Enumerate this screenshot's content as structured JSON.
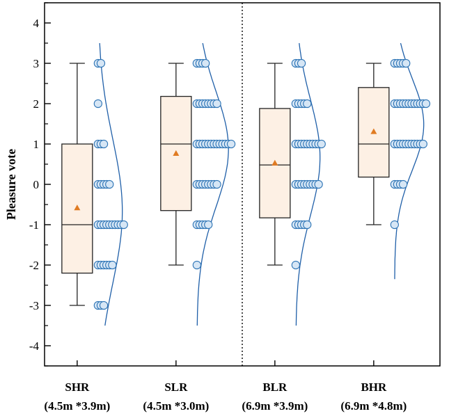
{
  "chart_data": {
    "type": "box",
    "ylabel": "Pleasure vote",
    "ylim": [
      -4.5,
      4.5
    ],
    "yticks": [
      -4,
      -3,
      -2,
      -1,
      0,
      1,
      2,
      3,
      4
    ],
    "categories": [
      {
        "name": "SHR",
        "sub": "(4.5m *3.9m)"
      },
      {
        "name": "SLR",
        "sub": "(4.5m *3.0m)"
      },
      {
        "name": "BLR",
        "sub": "(6.9m *3.9m)"
      },
      {
        "name": "BHR",
        "sub": "(6.9m *4.8m)"
      }
    ],
    "boxes": [
      {
        "min": -3,
        "q1": -2.2,
        "median": -1,
        "q3": 1,
        "max": 3,
        "mean": -0.58
      },
      {
        "min": -2,
        "q1": -0.65,
        "median": 1,
        "q3": 2.18,
        "max": 3,
        "mean": 0.77
      },
      {
        "min": -2,
        "q1": -0.83,
        "median": 0.48,
        "q3": 1.88,
        "max": 3,
        "mean": 0.53
      },
      {
        "min": -1,
        "q1": 0.18,
        "median": 1,
        "q3": 2.4,
        "max": 3,
        "mean": 1.31
      }
    ],
    "points": [
      {
        "3": 2,
        "2": 1,
        "1": 3,
        "0": 5,
        "-1": 10,
        "-2": 6,
        "-3": 3
      },
      {
        "3": 4,
        "2": 8,
        "1": 13,
        "0": 8,
        "-1": 5,
        "-2": 1
      },
      {
        "3": 3,
        "2": 5,
        "1": 10,
        "0": 9,
        "-1": 5,
        "-2": 1
      },
      {
        "3": 5,
        "2": 12,
        "1": 11,
        "0": 4,
        "-1": 1
      }
    ],
    "divider_after": 1,
    "colors": {
      "box_fill": "#fdf0e4",
      "box_stroke": "#222222",
      "mean": "#e07b22",
      "point_fill": "#d6e6f5",
      "point_stroke": "#2e75b6",
      "curve": "#1f5fa8"
    }
  }
}
